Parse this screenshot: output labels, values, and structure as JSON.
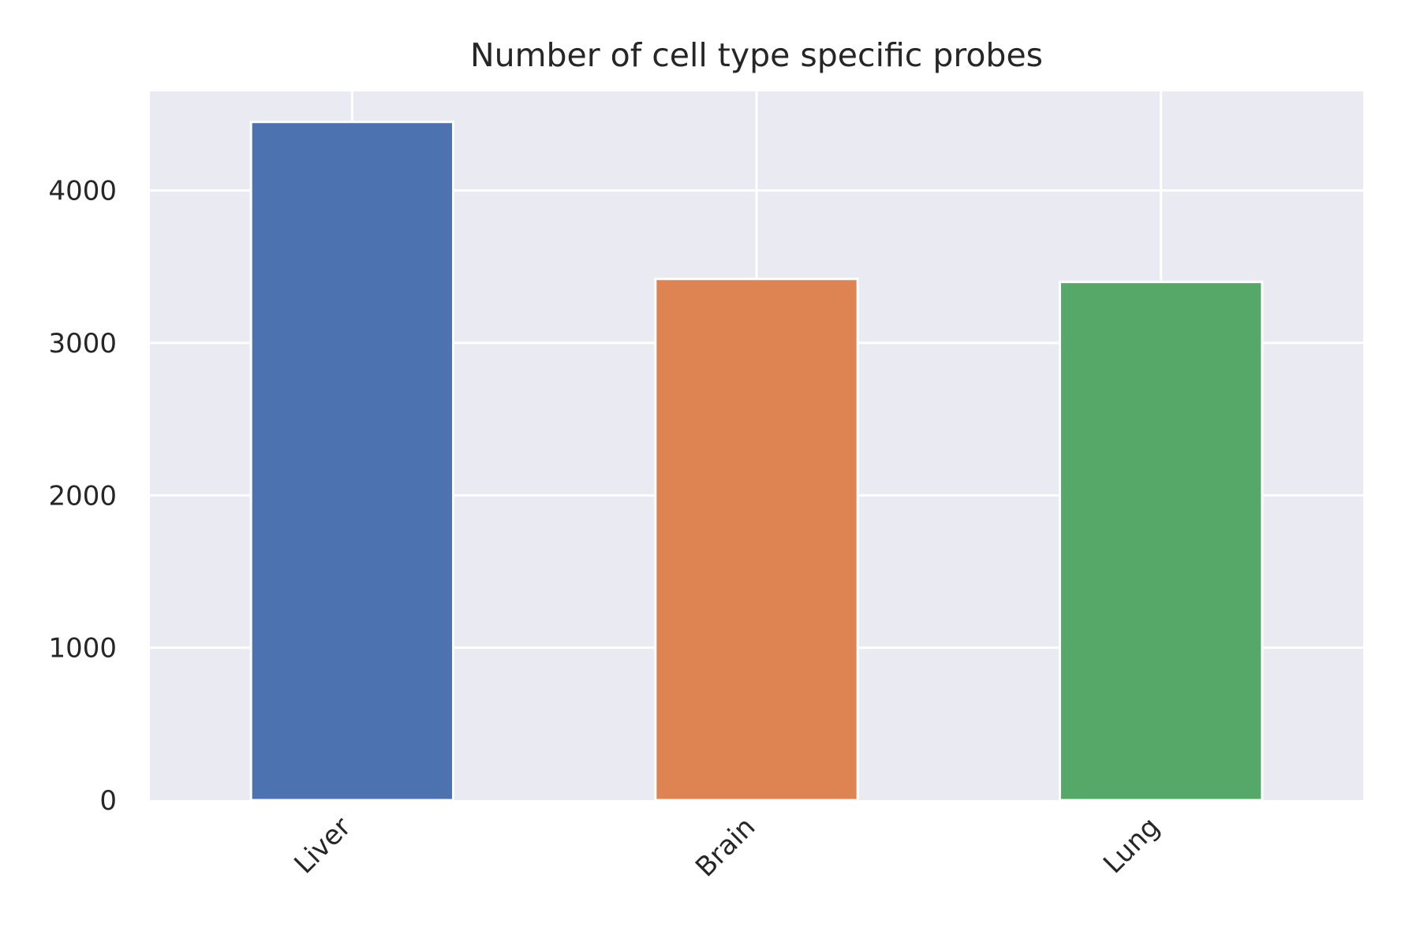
{
  "chart_data": {
    "type": "bar",
    "title": "Number of cell type specific probes",
    "xlabel": "",
    "ylabel": "",
    "categories": [
      "Liver",
      "Brain",
      "Lung"
    ],
    "values": [
      4450,
      3420,
      3400
    ],
    "colors": [
      "#4c72b0",
      "#dd8452",
      "#55a868"
    ],
    "ylim": [
      0,
      4650
    ],
    "yticks": [
      0,
      1000,
      2000,
      3000,
      4000
    ],
    "ytick_labels": [
      "0",
      "1000",
      "2000",
      "3000",
      "4000"
    ],
    "grid": true,
    "legend": "none",
    "plot_background": "#eaeaf2",
    "grid_color": "#ffffff"
  }
}
